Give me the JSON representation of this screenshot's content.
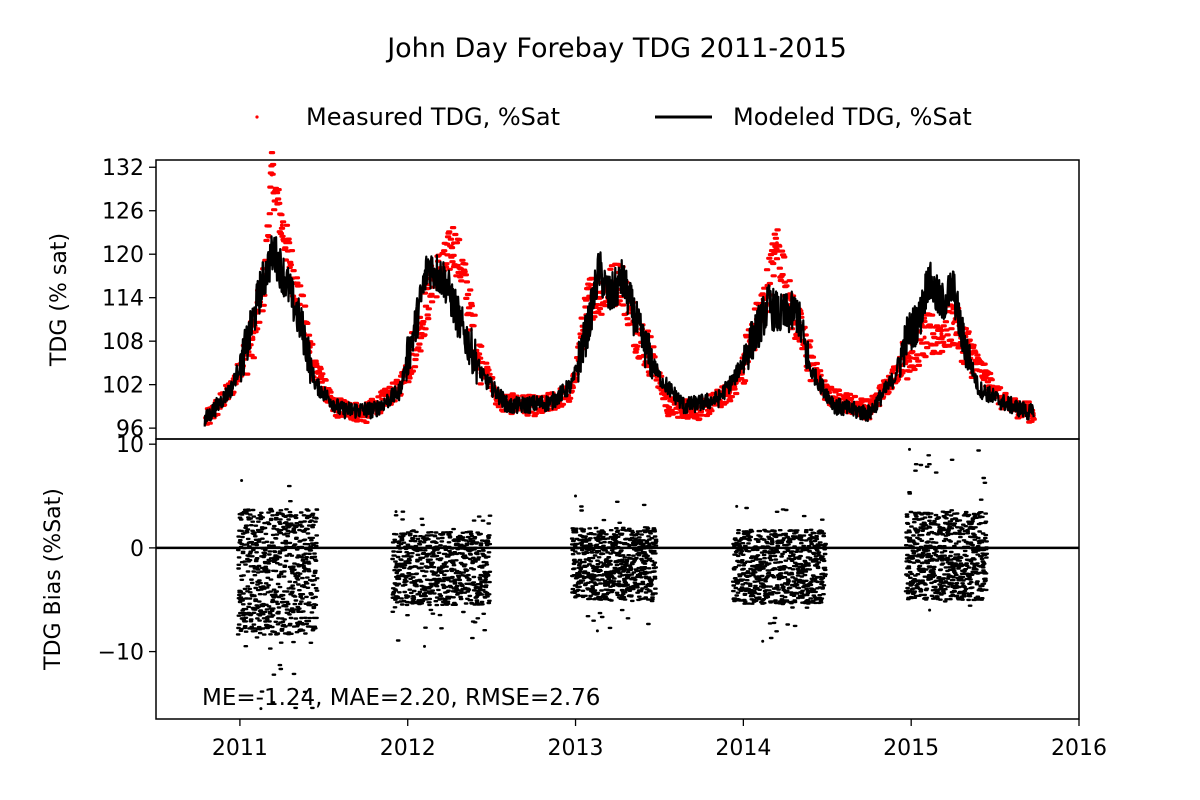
{
  "chart_data": {
    "type": "scatter",
    "title": "John Day Forebay TDG 2011-2015",
    "legend": {
      "placement": "top-center",
      "entries": [
        {
          "label": "Measured TDG, %Sat",
          "marker": "dot",
          "color": "#ff0000"
        },
        {
          "label": "Modeled TDG, %Sat",
          "marker": "line",
          "color": "#000000"
        }
      ]
    },
    "x_axis": {
      "label": "",
      "range": [
        2010.5,
        2016.0
      ],
      "ticks": [
        "2011",
        "2012",
        "2013",
        "2014",
        "2015",
        "2016"
      ],
      "tick_values": [
        2011,
        2012,
        2013,
        2014,
        2015,
        2016
      ]
    },
    "panels": [
      {
        "name": "tdg",
        "ylabel": "TDG (% sat)",
        "ylim": [
          94.5,
          133
        ],
        "yticks": [
          "132",
          "126",
          "120",
          "114",
          "108",
          "102",
          "96"
        ],
        "ytick_values": [
          132,
          126,
          120,
          114,
          108,
          102,
          96
        ],
        "series": [
          {
            "name": "Measured TDG, %Sat",
            "color": "#ff0000",
            "approx_points": [
              [
                2010.8,
                97.0
              ],
              [
                2010.95,
                101.5
              ],
              [
                2011.08,
                108.5
              ],
              [
                2011.15,
                116.5
              ],
              [
                2011.19,
                131.0
              ],
              [
                2011.25,
                124.0
              ],
              [
                2011.33,
                116.0
              ],
              [
                2011.42,
                106.5
              ],
              [
                2011.55,
                99.0
              ],
              [
                2011.75,
                98.0
              ],
              [
                2011.95,
                101.5
              ],
              [
                2012.08,
                110.0
              ],
              [
                2012.15,
                116.5
              ],
              [
                2012.22,
                118.5
              ],
              [
                2012.27,
                121.5
              ],
              [
                2012.33,
                117.5
              ],
              [
                2012.42,
                106.0
              ],
              [
                2012.55,
                99.5
              ],
              [
                2012.8,
                99.0
              ],
              [
                2012.98,
                101.0
              ],
              [
                2013.08,
                114.0
              ],
              [
                2013.18,
                115.0
              ],
              [
                2013.27,
                116.5
              ],
              [
                2013.36,
                109.5
              ],
              [
                2013.45,
                106.0
              ],
              [
                2013.55,
                99.0
              ],
              [
                2013.75,
                98.5
              ],
              [
                2013.95,
                101.5
              ],
              [
                2014.05,
                108.5
              ],
              [
                2014.12,
                113.0
              ],
              [
                2014.2,
                121.5
              ],
              [
                2014.28,
                113.0
              ],
              [
                2014.38,
                106.5
              ],
              [
                2014.5,
                100.5
              ],
              [
                2014.75,
                98.5
              ],
              [
                2014.98,
                106.0
              ],
              [
                2015.08,
                108.5
              ],
              [
                2015.18,
                109.0
              ],
              [
                2015.25,
                110.5
              ],
              [
                2015.35,
                106.5
              ],
              [
                2015.45,
                103.0
              ],
              [
                2015.55,
                99.5
              ],
              [
                2015.73,
                98.0
              ]
            ]
          },
          {
            "name": "Modeled TDG, %Sat",
            "color": "#000000",
            "approx_points": [
              [
                2010.79,
                97.0
              ],
              [
                2010.95,
                101.5
              ],
              [
                2011.05,
                108.0
              ],
              [
                2011.12,
                115.0
              ],
              [
                2011.2,
                120.5
              ],
              [
                2011.28,
                116.0
              ],
              [
                2011.38,
                109.0
              ],
              [
                2011.45,
                102.0
              ],
              [
                2011.6,
                98.5
              ],
              [
                2011.8,
                98.5
              ],
              [
                2011.95,
                101.0
              ],
              [
                2012.05,
                110.5
              ],
              [
                2012.12,
                118.5
              ],
              [
                2012.22,
                116.5
              ],
              [
                2012.32,
                110.0
              ],
              [
                2012.45,
                103.0
              ],
              [
                2012.6,
                99.0
              ],
              [
                2012.85,
                99.5
              ],
              [
                2012.98,
                102.0
              ],
              [
                2013.08,
                110.5
              ],
              [
                2013.14,
                118.0
              ],
              [
                2013.2,
                114.0
              ],
              [
                2013.28,
                116.5
              ],
              [
                2013.4,
                108.0
              ],
              [
                2013.5,
                103.0
              ],
              [
                2013.65,
                99.0
              ],
              [
                2013.85,
                100.0
              ],
              [
                2013.95,
                103.0
              ],
              [
                2014.05,
                108.0
              ],
              [
                2014.15,
                113.0
              ],
              [
                2014.22,
                111.5
              ],
              [
                2014.32,
                112.0
              ],
              [
                2014.4,
                104.0
              ],
              [
                2014.55,
                99.0
              ],
              [
                2014.75,
                98.0
              ],
              [
                2014.9,
                103.0
              ],
              [
                2014.98,
                109.0
              ],
              [
                2015.05,
                111.0
              ],
              [
                2015.1,
                116.5
              ],
              [
                2015.18,
                113.0
              ],
              [
                2015.25,
                115.5
              ],
              [
                2015.3,
                109.0
              ],
              [
                2015.4,
                101.5
              ],
              [
                2015.55,
                99.5
              ],
              [
                2015.73,
                98.0
              ]
            ]
          }
        ]
      },
      {
        "name": "bias",
        "ylabel": "TDG Bias (%Sat)",
        "ylim": [
          -16.5,
          10.5
        ],
        "yticks": [
          "10",
          "0",
          "−10"
        ],
        "ytick_values": [
          10,
          0,
          -10
        ],
        "reference_line": 0,
        "annotation": "ME=-1.24, MAE=2.20, RMSE=2.76",
        "series": [
          {
            "name": "TDG Bias",
            "color": "#000000",
            "segment_ranges": [
              {
                "x": [
                  2010.99,
                  2011.46
                ],
                "low": -15.5,
                "high": 6.5
              },
              {
                "x": [
                  2011.91,
                  2012.49
                ],
                "low": -9.5,
                "high": 3.5
              },
              {
                "x": [
                  2012.98,
                  2013.48
                ],
                "low": -8.0,
                "high": 5.0
              },
              {
                "x": [
                  2013.94,
                  2014.49
                ],
                "low": -9.0,
                "high": 4.0
              },
              {
                "x": [
                  2014.97,
                  2015.45
                ],
                "low": -6.0,
                "high": 9.5
              }
            ]
          }
        ]
      }
    ]
  }
}
